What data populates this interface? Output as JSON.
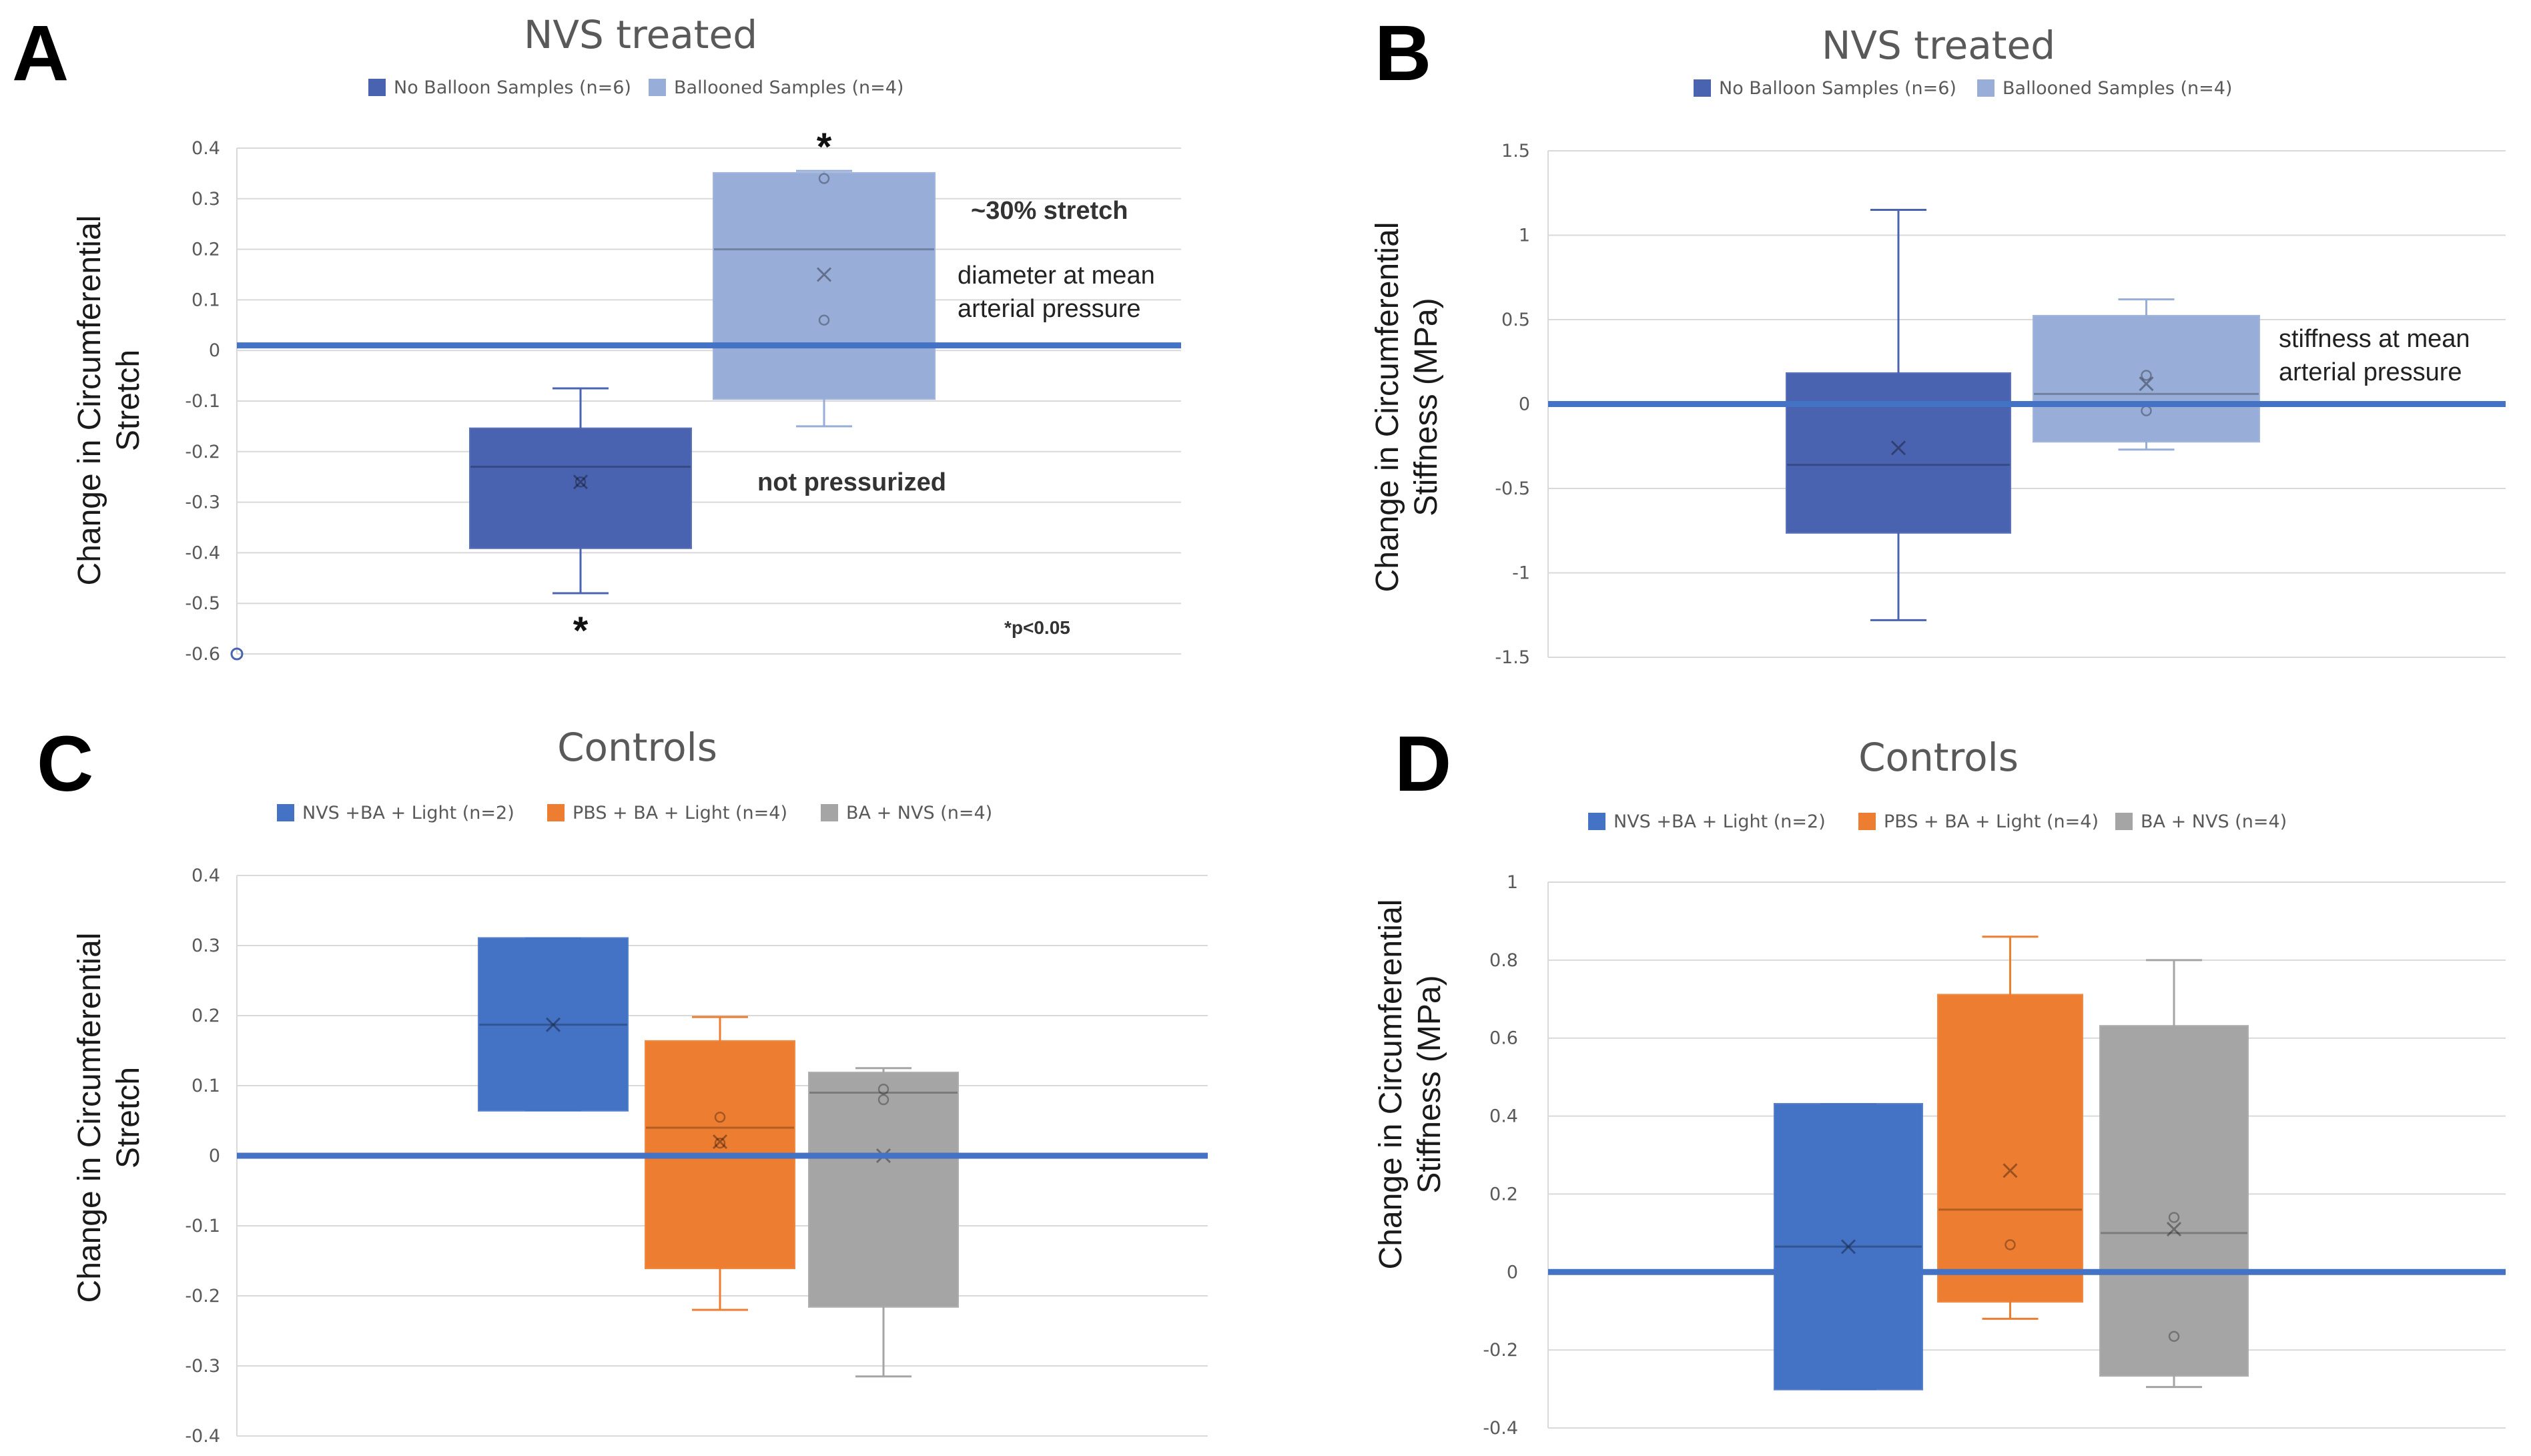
{
  "panel_labels": [
    "A",
    "B",
    "C",
    "D"
  ],
  "chart_data": [
    {
      "panel": "A",
      "type": "box",
      "title": "NVS treated",
      "ylabel_lines": [
        "Change in Circumferential",
        "Stretch"
      ],
      "ylim": [
        -0.6,
        0.4
      ],
      "yticks": [
        0.4,
        0.3,
        0.2,
        0.1,
        0,
        -0.1,
        -0.2,
        -0.3,
        -0.4,
        -0.5,
        -0.6
      ],
      "tick_labels": [
        "0.4",
        "0.3",
        "0.2",
        "0.1",
        "0",
        "-0.1",
        "-0.2",
        "-0.3",
        "-0.4",
        "-0.5",
        "-0.6"
      ],
      "reference_line": 0.01,
      "legend": [
        {
          "label": "No Balloon Samples (n=6)",
          "color": "#4a63b0"
        },
        {
          "label": "Ballooned Samples (n=4)",
          "color": "#98add8"
        }
      ],
      "series": [
        {
          "name": "No Balloon Samples (n=6)",
          "color": "#4a63b0",
          "min": -0.48,
          "q1": -0.39,
          "median": -0.23,
          "q3": -0.155,
          "max": -0.075,
          "mean": -0.26,
          "points": [
            -0.26
          ],
          "outliers": [
            -0.6
          ]
        },
        {
          "name": "Ballooned Samples (n=4)",
          "color": "#98add8",
          "min": -0.15,
          "q1": -0.095,
          "median": 0.2,
          "q3": 0.35,
          "max": 0.355,
          "mean": 0.15,
          "points": [
            0.06,
            0.34
          ],
          "outliers": []
        }
      ],
      "annotations": [
        "~30% stretch",
        "diameter at mean",
        "arterial pressure",
        "not pressurized"
      ],
      "significance": [
        "*",
        "*"
      ],
      "pvalue_note": "*p<0.05"
    },
    {
      "panel": "B",
      "type": "box",
      "title": "NVS treated",
      "ylabel_lines": [
        "Change in Circumferential",
        "Stiffness (MPa)"
      ],
      "ylim": [
        -1.5,
        1.5
      ],
      "yticks": [
        1.5,
        1,
        0.5,
        0,
        -0.5,
        -1,
        -1.5
      ],
      "tick_labels": [
        "1.5",
        "1",
        "0.5",
        "0",
        "-0.5",
        "-1",
        "-1.5"
      ],
      "reference_line": 0,
      "legend": [
        {
          "label": "No Balloon Samples (n=6)",
          "color": "#4a63b0"
        },
        {
          "label": "Ballooned Samples (n=4)",
          "color": "#98add8"
        }
      ],
      "series": [
        {
          "name": "No Balloon Samples (n=6)",
          "color": "#4a63b0",
          "min": -1.28,
          "q1": -0.76,
          "median": -0.36,
          "q3": 0.18,
          "max": 1.15,
          "mean": -0.26,
          "points": [],
          "outliers": []
        },
        {
          "name": "Ballooned Samples (n=4)",
          "color": "#98add8",
          "min": -0.27,
          "q1": -0.22,
          "median": 0.06,
          "q3": 0.52,
          "max": 0.62,
          "mean": 0.12,
          "points": [
            0.17,
            -0.04
          ],
          "outliers": []
        }
      ],
      "annotations": [
        "stiffness at mean",
        "arterial pressure"
      ]
    },
    {
      "panel": "C",
      "type": "box",
      "title": "Controls",
      "ylabel_lines": [
        "Change in Circumferential",
        "Stretch"
      ],
      "ylim": [
        -0.4,
        0.4
      ],
      "yticks": [
        0.4,
        0.3,
        0.2,
        0.1,
        0,
        -0.1,
        -0.2,
        -0.3,
        -0.4
      ],
      "tick_labels": [
        "0.4",
        "0.3",
        "0.2",
        "0.1",
        "0",
        "-0.1",
        "-0.2",
        "-0.3",
        "-0.4"
      ],
      "reference_line": 0,
      "legend": [
        {
          "label": "NVS +BA  +  Light (n=2)",
          "color": "#4472c4"
        },
        {
          "label": "PBS + BA  +  Light (n=4)",
          "color": "#ed7d31"
        },
        {
          "label": "BA  +  NVS (n=4)",
          "color": "#a5a5a5"
        }
      ],
      "series": [
        {
          "name": "NVS +BA  +  Light (n=2)",
          "color": "#4472c4",
          "min": 0.065,
          "q1": 0.065,
          "median": 0.187,
          "q3": 0.31,
          "max": 0.31,
          "mean": 0.187,
          "points": [],
          "outliers": []
        },
        {
          "name": "PBS + BA  +  Light (n=4)",
          "color": "#ed7d31",
          "min": -0.22,
          "q1": -0.16,
          "median": 0.04,
          "q3": 0.163,
          "max": 0.198,
          "mean": 0.02,
          "points": [
            0.055,
            0.018
          ],
          "outliers": []
        },
        {
          "name": "BA  +  NVS (n=4)",
          "color": "#a5a5a5",
          "min": -0.315,
          "q1": -0.215,
          "median": 0.09,
          "q3": 0.118,
          "max": 0.125,
          "mean": 0.0,
          "points": [
            0.08,
            0.095
          ],
          "outliers": []
        }
      ]
    },
    {
      "panel": "D",
      "type": "box",
      "title": "Controls",
      "ylabel_lines": [
        "Change in Circumferential",
        "Stiffness (MPa)"
      ],
      "ylim": [
        -0.4,
        1
      ],
      "yticks": [
        1,
        0.8,
        0.6,
        0.4,
        0.2,
        0,
        -0.2,
        -0.4
      ],
      "tick_labels": [
        "1",
        "0.8",
        "0.6",
        "0.4",
        "0.2",
        "0",
        "-0.2",
        "-0.4"
      ],
      "reference_line": 0,
      "legend": [
        {
          "label": "NVS +BA  +  Light (n=2)",
          "color": "#4472c4"
        },
        {
          "label": "PBS + BA  +  Light (n=4)",
          "color": "#ed7d31"
        },
        {
          "label": "BA  +  NVS (n=4)",
          "color": "#a5a5a5"
        }
      ],
      "series": [
        {
          "name": "NVS +BA  +  Light (n=2)",
          "color": "#4472c4",
          "min": -0.3,
          "q1": -0.3,
          "median": 0.065,
          "q3": 0.43,
          "max": 0.43,
          "mean": 0.065,
          "points": [],
          "outliers": []
        },
        {
          "name": "PBS + BA  +  Light (n=4)",
          "color": "#ed7d31",
          "min": -0.12,
          "q1": -0.075,
          "median": 0.16,
          "q3": 0.71,
          "max": 0.86,
          "mean": 0.26,
          "points": [
            0.07
          ],
          "outliers": []
        },
        {
          "name": "BA  +  NVS (n=4)",
          "color": "#a5a5a5",
          "min": -0.295,
          "q1": -0.265,
          "median": 0.1,
          "q3": 0.63,
          "max": 0.8,
          "mean": 0.11,
          "points": [
            0.14,
            -0.165
          ],
          "outliers": []
        }
      ]
    }
  ]
}
